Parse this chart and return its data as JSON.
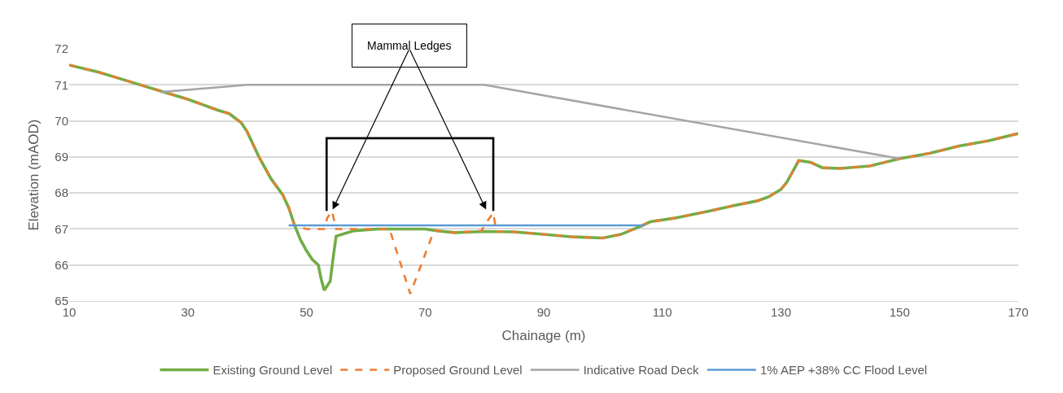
{
  "chart_data": {
    "type": "line",
    "xlabel": "Chainage (m)",
    "ylabel": "Elevation (mAOD)",
    "xlim": [
      10,
      170
    ],
    "xticks": [
      10,
      30,
      50,
      70,
      90,
      110,
      130,
      150,
      170
    ],
    "ylim": [
      65,
      72
    ],
    "yticks": [
      65,
      66,
      67,
      68,
      69,
      70,
      71,
      72
    ],
    "grid": "y",
    "legend": "bottom",
    "marker": "none",
    "annotations": [
      {
        "text": "Mammal Ledges",
        "x": 54.3,
        "y": 67.5
      }
    ],
    "series": [
      {
        "name": "Existing Ground Level",
        "color": "#70ad47",
        "line_style": "solid",
        "x": [
          10,
          15,
          20,
          25,
          30,
          35,
          37,
          39,
          40,
          42,
          44,
          46,
          47,
          48,
          49,
          50,
          51,
          52,
          52.5,
          53,
          54,
          54.5,
          55,
          56,
          58,
          62,
          70,
          72,
          75,
          80,
          85,
          90,
          95,
          100,
          103,
          106,
          108,
          112,
          118,
          122,
          126,
          128,
          130,
          131,
          133,
          135,
          137,
          140,
          145,
          150,
          155,
          160,
          165,
          170
        ],
        "values": [
          71.55,
          71.35,
          71.1,
          70.85,
          70.6,
          70.3,
          70.2,
          69.95,
          69.7,
          69.0,
          68.4,
          67.95,
          67.6,
          67.1,
          66.7,
          66.4,
          66.15,
          66.0,
          65.6,
          65.3,
          65.55,
          66.2,
          66.8,
          66.85,
          66.95,
          67.0,
          67.0,
          66.95,
          66.9,
          66.93,
          66.92,
          66.85,
          66.78,
          66.75,
          66.85,
          67.05,
          67.2,
          67.3,
          67.5,
          67.65,
          67.78,
          67.9,
          68.1,
          68.3,
          68.9,
          68.85,
          68.7,
          68.68,
          68.75,
          68.95,
          69.1,
          69.3,
          69.45,
          69.65
        ]
      },
      {
        "name": "Proposed Ground Level",
        "color": "#ed7d31",
        "line_style": "dashed",
        "x": [
          10,
          15,
          20,
          25,
          30,
          35,
          37,
          39,
          40,
          42,
          44,
          46,
          47,
          48,
          50,
          53,
          53.5,
          54.3,
          55,
          58,
          62,
          64,
          67.5,
          71.5,
          72,
          75,
          79.5,
          80.4,
          81.5,
          82,
          85,
          90,
          95,
          100,
          103,
          106,
          108,
          112,
          118,
          122,
          126,
          128,
          130,
          131,
          133,
          135,
          137,
          140,
          145,
          150,
          155,
          160,
          165,
          170
        ],
        "values": [
          71.55,
          71.35,
          71.1,
          70.85,
          70.6,
          70.3,
          70.2,
          69.95,
          69.7,
          69.0,
          68.4,
          67.95,
          67.6,
          67.1,
          67.0,
          67.0,
          67.3,
          67.5,
          67.0,
          67.0,
          67.0,
          67.0,
          65.2,
          66.95,
          66.95,
          66.9,
          66.95,
          67.2,
          67.45,
          66.93,
          66.92,
          66.85,
          66.78,
          66.75,
          66.85,
          67.05,
          67.2,
          67.3,
          67.5,
          67.65,
          67.78,
          67.9,
          68.1,
          68.3,
          68.9,
          68.85,
          68.7,
          68.68,
          68.75,
          68.95,
          69.1,
          69.3,
          69.45,
          69.65
        ]
      },
      {
        "name": "Indicative Road Deck",
        "color": "#a5a5a5",
        "line_style": "solid",
        "x": [
          25.5,
          40,
          80,
          150
        ],
        "values": [
          70.8,
          71.0,
          71.0,
          68.95
        ]
      },
      {
        "name": "1% AEP +38% CC Flood Level",
        "color": "#5b9bd5",
        "line_style": "solid",
        "x": [
          47,
          107
        ],
        "values": [
          67.1,
          67.1
        ]
      },
      {
        "color": "#000000",
        "line_style": "solid",
        "x": [
          53.4,
          53.4,
          81.5,
          81.5
        ],
        "values": [
          67.5,
          69.52,
          69.52,
          67.5
        ]
      }
    ]
  }
}
